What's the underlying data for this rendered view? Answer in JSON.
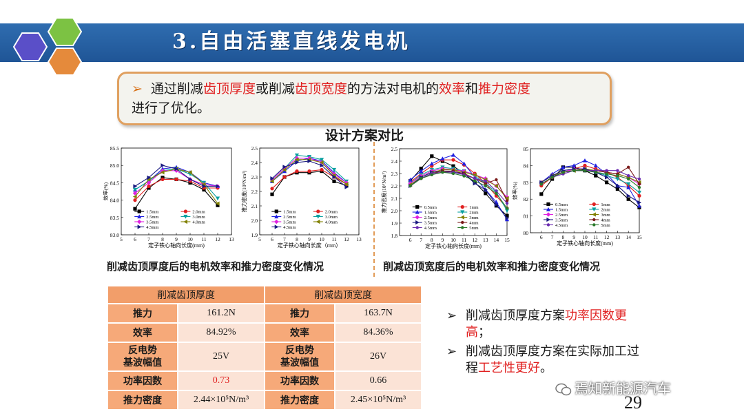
{
  "header": {
    "title": "3.自由活塞直线发电机"
  },
  "callout": {
    "bullet": "➢",
    "parts": [
      "通过削减",
      "齿顶厚度",
      "或削减",
      "齿顶宽度",
      "的方法对电机的",
      "效率",
      "和",
      "推力密度",
      "进行了优化。"
    ]
  },
  "section_title": "设计方案对比",
  "captions": {
    "left": "削减齿顶厚度后的电机效率和推力密度变化情况",
    "right": "削减齿顶宽度后的电机效率和推力密度变化情况"
  },
  "chart_data": [
    {
      "type": "line",
      "ylabel": "效率(%)",
      "xlabel": "定子铁心轴向长度(mm)",
      "xlim": [
        5,
        13
      ],
      "ylim": [
        83.0,
        85.5
      ],
      "xticks": [
        "5",
        "6",
        "7",
        "8",
        "9",
        "10",
        "11",
        "12",
        "13"
      ],
      "yticks": [
        "83.0",
        "83.5",
        "84.0",
        "84.5",
        "85.0",
        "85.5"
      ],
      "x": [
        6,
        7,
        8,
        9,
        10,
        11,
        12
      ],
      "legend": "bottom",
      "series": [
        {
          "name": "1.5mm",
          "color": "#000000",
          "marker": "square",
          "values": [
            83.75,
            84.35,
            84.65,
            84.6,
            84.5,
            84.3,
            83.85
          ]
        },
        {
          "name": "2.0mm",
          "color": "#e02020",
          "marker": "circle",
          "values": [
            84.0,
            84.4,
            84.6,
            84.6,
            84.55,
            84.35,
            84.35
          ]
        },
        {
          "name": "2.5mm",
          "color": "#2020e0",
          "marker": "triangle",
          "values": [
            84.3,
            84.55,
            84.9,
            84.95,
            84.8,
            84.5,
            84.4
          ]
        },
        {
          "name": "3.0mm",
          "color": "#0aa0a0",
          "marker": "tri-down",
          "values": [
            84.3,
            84.55,
            84.85,
            84.9,
            84.75,
            84.5,
            84.05
          ]
        },
        {
          "name": "3.5mm",
          "color": "#e020e0",
          "marker": "diamond",
          "values": [
            84.2,
            84.5,
            84.85,
            84.85,
            84.6,
            84.45,
            84.4
          ]
        },
        {
          "name": "4.0mm",
          "color": "#808000",
          "marker": "tri-left",
          "values": [
            84.1,
            84.6,
            84.8,
            84.9,
            84.8,
            84.45,
            83.9
          ]
        },
        {
          "name": "4.5mm",
          "color": "#1a1a80",
          "marker": "tri-right",
          "values": [
            84.4,
            84.65,
            85.0,
            84.9,
            84.6,
            84.4,
            84.4
          ]
        }
      ]
    },
    {
      "type": "line",
      "ylabel": "推力密度(10⁵N/m³)",
      "xlabel": "定子铁心轴向长度（mm）",
      "xlim": [
        5,
        13
      ],
      "ylim": [
        1.9,
        2.5
      ],
      "xticks": [
        "5",
        "6",
        "7",
        "8",
        "9",
        "10",
        "11",
        "12",
        "13"
      ],
      "yticks": [
        "1.9",
        "2.0",
        "2.1",
        "2.2",
        "2.3",
        "2.4",
        "2.5"
      ],
      "x": [
        6,
        7,
        8,
        9,
        10,
        11,
        12
      ],
      "legend": "bottom",
      "series": [
        {
          "name": "1.5mm",
          "color": "#000000",
          "marker": "square",
          "values": [
            2.18,
            2.3,
            2.33,
            2.33,
            2.34,
            2.27,
            2.24
          ]
        },
        {
          "name": "2.0mm",
          "color": "#e02020",
          "marker": "circle",
          "values": [
            2.22,
            2.3,
            2.34,
            2.34,
            2.35,
            2.3,
            2.25
          ]
        },
        {
          "name": "2.5mm",
          "color": "#2020e0",
          "marker": "triangle",
          "values": [
            2.27,
            2.34,
            2.41,
            2.43,
            2.41,
            2.33,
            2.26
          ]
        },
        {
          "name": "3.0mm",
          "color": "#0aa0a0",
          "marker": "tri-down",
          "values": [
            2.28,
            2.36,
            2.45,
            2.44,
            2.42,
            2.35,
            2.27
          ]
        },
        {
          "name": "3.5mm",
          "color": "#e020e0",
          "marker": "diamond",
          "values": [
            2.28,
            2.36,
            2.43,
            2.43,
            2.4,
            2.32,
            2.26
          ]
        },
        {
          "name": "4.0mm",
          "color": "#808000",
          "marker": "tri-left",
          "values": [
            2.27,
            2.35,
            2.42,
            2.42,
            2.4,
            2.31,
            2.25
          ]
        },
        {
          "name": "4.5mm",
          "color": "#1a1a80",
          "marker": "tri-right",
          "values": [
            2.29,
            2.37,
            2.4,
            2.41,
            2.38,
            2.3,
            2.23
          ]
        }
      ]
    },
    {
      "type": "line",
      "ylabel": "推力密度(10⁵N/m³)",
      "xlabel": "定子铁心轴向长度(mm)",
      "xlim": [
        5,
        15
      ],
      "ylim": [
        1.8,
        2.5
      ],
      "xticks": [
        "6",
        "7",
        "8",
        "9",
        "10",
        "11",
        "12",
        "13",
        "14",
        "15"
      ],
      "yticks": [
        "1.8",
        "1.9",
        "2.0",
        "2.1",
        "2.2",
        "2.3",
        "2.4",
        "2.5"
      ],
      "x": [
        6,
        7,
        8,
        9,
        10,
        11,
        12,
        13,
        14,
        15
      ],
      "legend": "bottom",
      "series": [
        {
          "name": "0.5mm",
          "color": "#000000",
          "marker": "square",
          "values": [
            2.24,
            2.34,
            2.44,
            2.4,
            2.36,
            2.3,
            2.23,
            2.14,
            2.04,
            1.96
          ]
        },
        {
          "name": "1mm",
          "color": "#e02020",
          "marker": "circle",
          "values": [
            2.23,
            2.3,
            2.36,
            2.41,
            2.41,
            2.37,
            2.3,
            2.22,
            2.12,
            2.02
          ]
        },
        {
          "name": "1.5mm",
          "color": "#2020e0",
          "marker": "triangle",
          "values": [
            2.25,
            2.32,
            2.38,
            2.42,
            2.45,
            2.38,
            2.27,
            2.17,
            2.07,
            1.93
          ]
        },
        {
          "name": "2mm",
          "color": "#0aa0a0",
          "marker": "tri-down",
          "values": [
            2.22,
            2.29,
            2.33,
            2.35,
            2.34,
            2.32,
            2.28,
            2.22,
            2.15,
            2.0
          ]
        },
        {
          "name": "2.5mm",
          "color": "#e020e0",
          "marker": "diamond",
          "values": [
            2.22,
            2.28,
            2.32,
            2.34,
            2.33,
            2.32,
            2.29,
            2.26,
            2.2,
            2.11
          ]
        },
        {
          "name": "3mm",
          "color": "#808000",
          "marker": "tri-left",
          "values": [
            2.21,
            2.27,
            2.31,
            2.33,
            2.33,
            2.31,
            2.29,
            2.25,
            2.2,
            2.1
          ]
        },
        {
          "name": "3.5mm",
          "color": "#1a1a80",
          "marker": "tri-right",
          "values": [
            2.2,
            2.27,
            2.31,
            2.32,
            2.31,
            2.3,
            2.22,
            2.17,
            2.05,
            1.94
          ]
        },
        {
          "name": "4mm",
          "color": "#7a1a1a",
          "marker": "hex",
          "values": [
            2.2,
            2.26,
            2.3,
            2.32,
            2.32,
            2.3,
            2.26,
            2.22,
            2.25,
            2.08
          ]
        },
        {
          "name": "4.5mm",
          "color": "#6a2ab0",
          "marker": "star",
          "values": [
            2.2,
            2.26,
            2.3,
            2.31,
            2.31,
            2.29,
            2.26,
            2.24,
            2.16,
            2.06
          ]
        },
        {
          "name": "5mm",
          "color": "#2a7a2a",
          "marker": "pent",
          "values": [
            2.2,
            2.26,
            2.29,
            2.31,
            2.3,
            2.28,
            2.24,
            2.2,
            2.14,
            2.02
          ]
        }
      ]
    },
    {
      "type": "line",
      "ylabel": "效率(%)",
      "xlabel": "定子铁心轴向长度(mm)",
      "xlim": [
        5,
        15
      ],
      "ylim": [
        80,
        85
      ],
      "xticks": [
        "6",
        "7",
        "8",
        "9",
        "10",
        "11",
        "12",
        "13",
        "14",
        "15"
      ],
      "yticks": [
        "80",
        "81",
        "82",
        "83",
        "84",
        "85"
      ],
      "x": [
        6,
        7,
        8,
        9,
        10,
        11,
        12,
        13,
        14,
        15
      ],
      "legend": "bottom",
      "series": [
        {
          "name": "0.5mm",
          "color": "#000000",
          "marker": "square",
          "values": [
            82.3,
            83.2,
            83.9,
            83.9,
            83.7,
            83.4,
            83.0,
            82.6,
            82.0,
            81.5
          ]
        },
        {
          "name": "1mm",
          "color": "#e02020",
          "marker": "circle",
          "values": [
            82.8,
            83.3,
            83.6,
            83.8,
            84.0,
            83.8,
            83.6,
            83.3,
            82.8,
            82.2
          ]
        },
        {
          "name": "1.5mm",
          "color": "#2020e0",
          "marker": "triangle",
          "values": [
            83.0,
            83.5,
            83.9,
            84.0,
            84.3,
            84.0,
            83.5,
            82.8,
            82.7,
            81.6
          ]
        },
        {
          "name": "2mm",
          "color": "#0aa0a0",
          "marker": "tri-down",
          "values": [
            82.9,
            83.3,
            83.6,
            83.7,
            83.7,
            83.6,
            83.4,
            83.2,
            82.9,
            82.4
          ]
        },
        {
          "name": "2.5mm",
          "color": "#e020e0",
          "marker": "diamond",
          "values": [
            83.0,
            83.4,
            83.6,
            83.8,
            83.8,
            83.7,
            83.6,
            83.5,
            83.3,
            82.9
          ]
        },
        {
          "name": "3mm",
          "color": "#808000",
          "marker": "tri-left",
          "values": [
            83.0,
            83.4,
            83.6,
            83.7,
            83.8,
            83.7,
            83.6,
            83.5,
            83.3,
            83.0
          ]
        },
        {
          "name": "3.5mm",
          "color": "#1a1a80",
          "marker": "tri-right",
          "values": [
            83.0,
            83.4,
            83.7,
            83.8,
            83.8,
            83.6,
            83.3,
            82.8,
            82.2,
            81.8
          ]
        },
        {
          "name": "4mm",
          "color": "#7a1a1a",
          "marker": "hex",
          "values": [
            82.9,
            83.3,
            83.6,
            83.7,
            83.7,
            83.7,
            83.6,
            83.5,
            83.9,
            82.9
          ]
        },
        {
          "name": "4.5mm",
          "color": "#6a2ab0",
          "marker": "star",
          "values": [
            82.9,
            83.3,
            83.5,
            83.7,
            83.7,
            83.7,
            83.7,
            83.7,
            83.4,
            83.2
          ]
        },
        {
          "name": "5mm",
          "color": "#2a7a2a",
          "marker": "pent",
          "values": [
            82.9,
            83.3,
            83.6,
            83.7,
            83.7,
            83.6,
            83.5,
            83.4,
            83.2,
            82.7
          ]
        }
      ]
    }
  ],
  "table": {
    "headers": [
      "削减齿顶厚度",
      "削减齿顶宽度"
    ],
    "rows": [
      {
        "label": "推力",
        "a": "161.2N",
        "b": "163.7N"
      },
      {
        "label": "效率",
        "a": "84.92%",
        "b": "84.36%"
      },
      {
        "label": "反电势\n基波幅值",
        "a": "25V",
        "b": "26V"
      },
      {
        "label": "功率因数",
        "a": "0.73",
        "b": "0.66"
      },
      {
        "label": "推力密度",
        "a": "2.44×10⁵N/m³",
        "b": "2.45×10⁵N/m³"
      }
    ],
    "highlight_color": "#e02020"
  },
  "bullets": {
    "marker": "➢",
    "b1": [
      "削减齿顶厚度方案",
      "功率因数更高",
      "；"
    ],
    "b2": [
      "削减齿顶厚度方案在实际加工过程",
      "工艺性更好",
      "。"
    ]
  },
  "page_number": "29",
  "watermark": "焉知新能源汽车",
  "colors": {
    "header": "#2f6db0",
    "accent": "#e02020",
    "callout_border": "#e0a060",
    "table_header": "#f29e6a",
    "table_cell": "#fbe3d6"
  }
}
